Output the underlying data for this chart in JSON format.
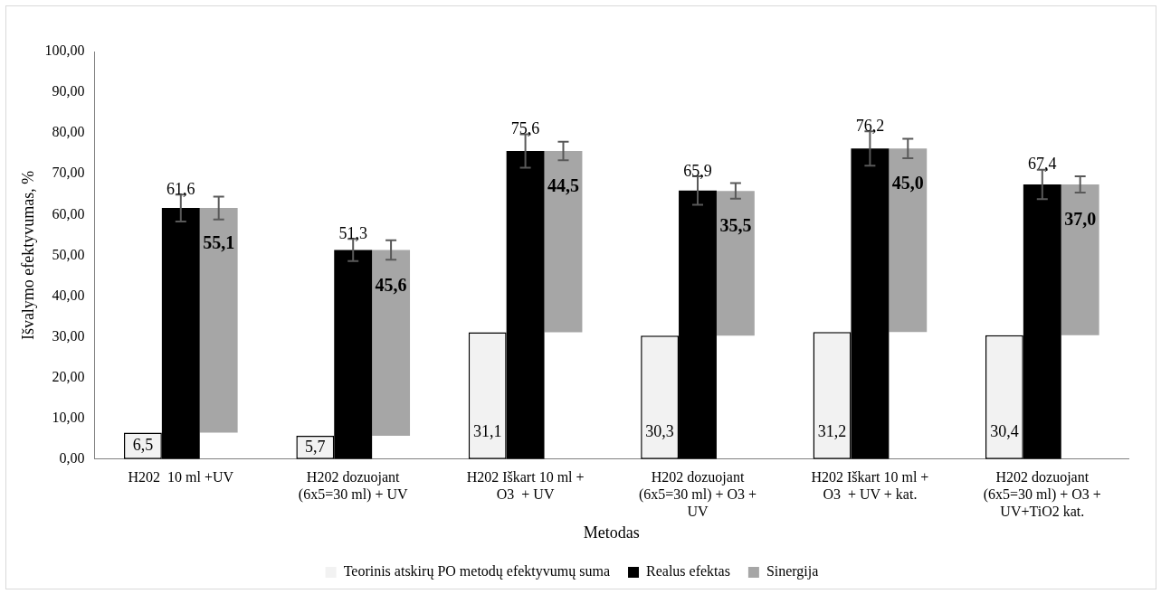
{
  "chart_data": {
    "type": "bar",
    "xlabel": "Metodas",
    "ylabel": "Išvalymo efektyvumas, %",
    "categories": [
      "H202  10 ml +UV",
      "H202 dozuojant (6x5=30 ml) + UV",
      "H202 Iškart 10 ml + O3  + UV",
      "H202 dozuojant (6x5=30 ml) + O3 + UV",
      "H202 Iškart 10 ml + O3  + UV + kat.",
      "H202 dozuojant (6x5=30 ml) + O3 + UV+TiO2 kat."
    ],
    "series": [
      {
        "name": "Teorinis atskirų PO metodų efektyvumų suma",
        "color": "#f2f2f2",
        "values": [
          6.5,
          5.7,
          31.1,
          30.3,
          31.2,
          30.4
        ],
        "value_labels": [
          "6,5",
          "5,7",
          "31,1",
          "30,3",
          "31,2",
          "30,4"
        ]
      },
      {
        "name": "Realus efektas",
        "color": "#000000",
        "values": [
          61.6,
          51.3,
          75.6,
          65.9,
          76.2,
          67.4
        ],
        "value_labels": [
          "61,6",
          "51,3",
          "75,6",
          "65,9",
          "76,2",
          "67,4"
        ],
        "errors": [
          3.3,
          2.7,
          4.1,
          3.5,
          4.2,
          3.6
        ]
      },
      {
        "name": "Sinergija",
        "color": "#a6a6a6",
        "values": [
          55.1,
          45.6,
          44.5,
          35.5,
          45.0,
          37.0
        ],
        "base": [
          6.5,
          5.7,
          31.1,
          30.3,
          31.2,
          30.4
        ],
        "value_labels": [
          "55,1",
          "45,6",
          "44,5",
          "35,5",
          "45,0",
          "37,0"
        ],
        "errors": [
          2.8,
          2.4,
          2.3,
          1.9,
          2.4,
          2.0
        ]
      }
    ],
    "ylim": [
      0,
      100
    ],
    "yticks": [
      {
        "value": 0,
        "label": "0,00"
      },
      {
        "value": 10,
        "label": "10,00"
      },
      {
        "value": 20,
        "label": "20,00"
      },
      {
        "value": 30,
        "label": "30,00"
      },
      {
        "value": 40,
        "label": "40,00"
      },
      {
        "value": 50,
        "label": "50,00"
      },
      {
        "value": 60,
        "label": "60,00"
      },
      {
        "value": 70,
        "label": "70,00"
      },
      {
        "value": 80,
        "label": "80,00"
      },
      {
        "value": 90,
        "label": "90,00"
      },
      {
        "value": 100,
        "label": "100,00"
      }
    ],
    "grid": false,
    "legend": "bottom"
  }
}
